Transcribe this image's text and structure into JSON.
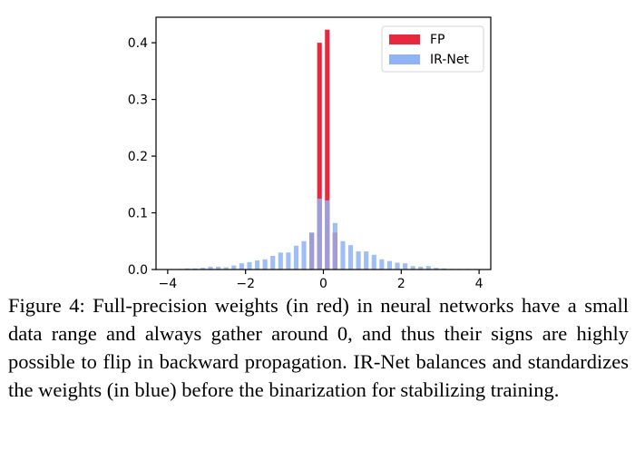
{
  "chart_data": {
    "type": "bar",
    "title": "",
    "xlabel": "",
    "ylabel": "",
    "xlim": [
      -4.3,
      4.3
    ],
    "ylim": [
      0,
      0.445
    ],
    "xticks": [
      -4,
      -2,
      0,
      2,
      4
    ],
    "xtick_labels": [
      "−4",
      "−2",
      "0",
      "2",
      "4"
    ],
    "yticks": [
      0.0,
      0.1,
      0.2,
      0.3,
      0.4
    ],
    "ytick_labels": [
      "0.0",
      "0.1",
      "0.2",
      "0.3",
      "0.4"
    ],
    "bar_width": 0.12,
    "grid": false,
    "legend_position": "top-right",
    "series": [
      {
        "name": "FP",
        "color": "#e8283d",
        "x": [
          -0.3,
          -0.1,
          0.1,
          0.3
        ],
        "values": [
          0.065,
          0.4,
          0.423,
          0.065
        ]
      },
      {
        "name": "IR-Net",
        "color": "#8fb3f5",
        "x": [
          -3.9,
          -3.7,
          -3.5,
          -3.3,
          -3.1,
          -2.9,
          -2.7,
          -2.5,
          -2.3,
          -2.1,
          -1.9,
          -1.7,
          -1.5,
          -1.3,
          -1.1,
          -0.9,
          -0.7,
          -0.5,
          -0.3,
          -0.1,
          0.1,
          0.3,
          0.5,
          0.7,
          0.9,
          1.1,
          1.3,
          1.5,
          1.7,
          1.9,
          2.1,
          2.3,
          2.5,
          2.7,
          2.9,
          3.1,
          3.3,
          3.5,
          3.7,
          3.9
        ],
        "values": [
          0.001,
          0.001,
          0.002,
          0.002,
          0.003,
          0.005,
          0.005,
          0.004,
          0.007,
          0.011,
          0.013,
          0.016,
          0.018,
          0.024,
          0.03,
          0.03,
          0.042,
          0.05,
          0.065,
          0.125,
          0.122,
          0.082,
          0.05,
          0.043,
          0.032,
          0.032,
          0.026,
          0.018,
          0.015,
          0.012,
          0.011,
          0.006,
          0.005,
          0.006,
          0.003,
          0.002,
          0.001,
          0.001,
          0.001,
          0.001
        ]
      }
    ]
  },
  "caption": {
    "text": "Figure 4: Full-precision weights (in red) in neural networks have a small data range and always gather around 0, and thus their signs are highly possible to flip in backward propagation. IR-Net balances and standardizes the weights (in blue) before the binarization for stabilizing training."
  }
}
